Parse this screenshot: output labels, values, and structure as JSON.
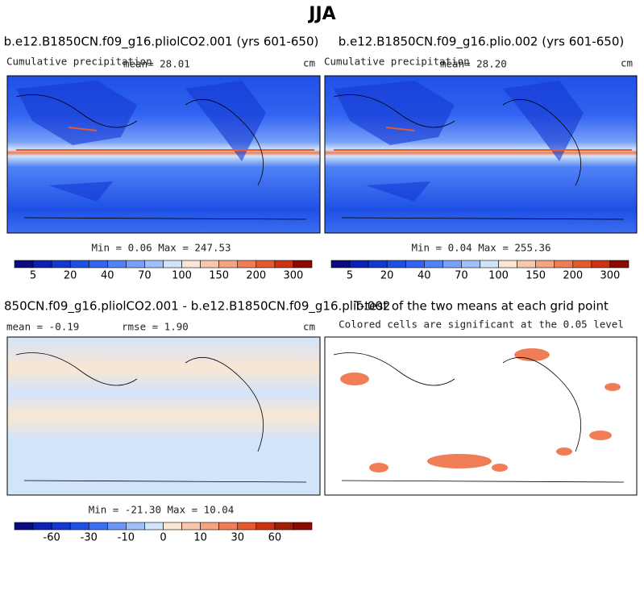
{
  "title": "JJA",
  "panels": [
    {
      "title": "b.e12.B1850CN.f09_g16.pliolCO2.001 (yrs 601-650)",
      "left_label": "Cumulative precipitation",
      "center_label": "mean=  28.01",
      "right_label": "cm",
      "stats": "Min =   0.06 Max = 247.53"
    },
    {
      "title": "b.e12.B1850CN.f09_g16.plio.002 (yrs 601-650)",
      "left_label": "Cumulative precipitation",
      "center_label": "mean=  28.20",
      "right_label": "cm",
      "stats": "Min =   0.04 Max = 255.36"
    },
    {
      "title": "850CN.f09_g16.pliolCO2.001 - b.e12.B1850CN.f09_g16.plio.002",
      "left_label": "mean =  -0.19",
      "center_label": "rmse =   1.90",
      "right_label": "cm",
      "stats": "Min = -21.30 Max =  10.04"
    },
    {
      "title": "T-test of the two means at each grid point",
      "subtitle": "Colored cells are significant at the 0.05 level"
    }
  ],
  "colorbars": [
    {
      "labels": [
        "5",
        "20",
        "40",
        "70",
        "100",
        "150",
        "200",
        "300"
      ],
      "label_start": 1,
      "colors": [
        "#0a0a82",
        "#0c22b4",
        "#1438d2",
        "#1e50e6",
        "#3264f0",
        "#5082f5",
        "#78a0f8",
        "#a0c0fa",
        "#d2e4fa",
        "#fae6d2",
        "#f8c8aa",
        "#f5a482",
        "#f07d55",
        "#e65a2d",
        "#cd3212",
        "#8c0a00"
      ]
    },
    {
      "labels": [
        "-60",
        "-30",
        "-10",
        "0",
        "10",
        "30",
        "60"
      ],
      "label_start": 2,
      "colors": [
        "#0a0a82",
        "#0c22b4",
        "#1438d2",
        "#1e50e6",
        "#3c6ef0",
        "#6e96f5",
        "#a0c0fa",
        "#d2e4fa",
        "#fae6d2",
        "#f8c8aa",
        "#f5a482",
        "#f07d55",
        "#e65a2d",
        "#cd3212",
        "#a01e05",
        "#8c0a00"
      ]
    }
  ]
}
